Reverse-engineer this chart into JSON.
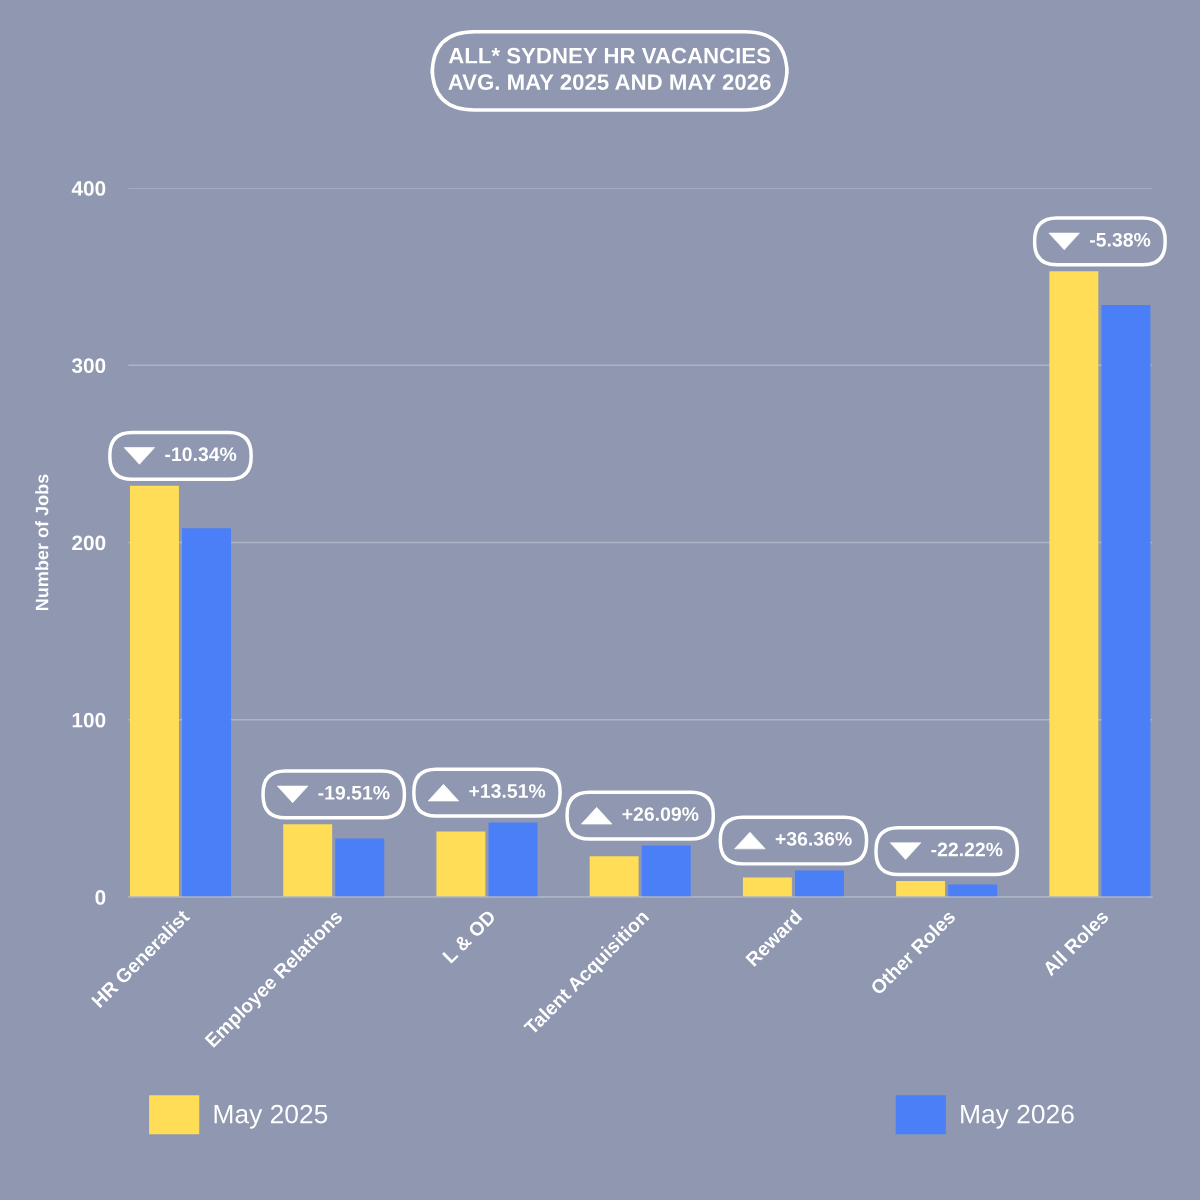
{
  "chart_data": {
    "type": "bar",
    "title": "ALL* SYDNEY HR VACANCIES\nAVG. MAY 2025 AND MAY 2026",
    "ylabel": "Number of Jobs",
    "categories": [
      "HR Generalist",
      "Employee Relations",
      "L & OD",
      "Talent Acquisition",
      "Reward",
      "Other Roles",
      "All Roles"
    ],
    "series": [
      {
        "name": "May 2025",
        "color": "#ffdd57",
        "values": [
          232,
          41,
          37,
          23,
          11,
          9,
          353
        ]
      },
      {
        "name": "May 2026",
        "color": "#4a7ff7",
        "values": [
          208,
          33,
          42,
          29,
          15,
          7,
          334
        ]
      }
    ],
    "ylim": [
      0,
      400
    ],
    "yticks": [
      0,
      100,
      200,
      300,
      400
    ],
    "grid": "y",
    "legend": "bottom",
    "annotations": [
      {
        "text": "-10.34%",
        "x": "HR Generalist",
        "y": 232
      },
      {
        "text": "-19.51%",
        "x": "Employee Relations",
        "y": 41
      },
      {
        "text": "+13.51%",
        "x": "L & OD",
        "y": 42
      },
      {
        "text": "+26.09%",
        "x": "Talent Acquisition",
        "y": 29
      },
      {
        "text": "+36.36%",
        "x": "Reward",
        "y": 15
      },
      {
        "text": "-22.22%",
        "x": "Other Roles",
        "y": 9
      },
      {
        "text": "-5.38%",
        "x": "All Roles",
        "y": 353
      }
    ]
  }
}
